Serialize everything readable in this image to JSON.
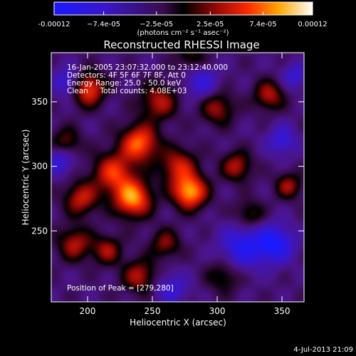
{
  "chart_data": {
    "type": "heatmap",
    "title": "Reconstructed RHESSI Image",
    "xlabel": "Heliocentric X (arcsec)",
    "ylabel": "Heliocentric Y (arcsec)",
    "xlim": [
      172,
      367
    ],
    "ylim": [
      195,
      388
    ],
    "x_ticks": [
      200,
      250,
      300,
      350
    ],
    "y_ticks": [
      250,
      300,
      350
    ],
    "colorbar": {
      "min": -0.00012,
      "max": 0.00012,
      "tick_values": [
        -0.00012,
        -7.4e-05,
        -2.5e-05,
        2.5e-05,
        7.4e-05,
        0.00012
      ],
      "tick_labels": [
        "-0.00012",
        "−7.4e-05",
        "−2.5e-05",
        "2.5e-05",
        "7.4e-05",
        "0.00012"
      ],
      "unit_label": "(photons cm⁻² s⁻¹ asec⁻²)"
    },
    "annotations": [
      "16-Jan-2005 23:07:32.000 to 23:12:40.000",
      "Detectors: 4F 5F 6F 7F 8F, Att 0",
      "Energy Range: 25.0 - 50.0 keV",
      "Clean     Total counts: 4.08E+03"
    ],
    "peak_label": "Position of Peak = [279,280]",
    "peak": [
      279,
      280
    ],
    "footer_timestamp": "4-Jul-2013 21:09",
    "sources": [
      {
        "x": 279,
        "y": 280,
        "amp": 1.0,
        "sigma": 9
      },
      {
        "x": 235,
        "y": 275,
        "amp": 0.95,
        "sigma": 10
      },
      {
        "x": 220,
        "y": 295,
        "amp": 0.7,
        "sigma": 11
      },
      {
        "x": 240,
        "y": 318,
        "amp": 0.85,
        "sigma": 10
      },
      {
        "x": 200,
        "y": 360,
        "amp": 0.8,
        "sigma": 9
      },
      {
        "x": 255,
        "y": 350,
        "amp": 0.55,
        "sigma": 10
      },
      {
        "x": 300,
        "y": 345,
        "amp": 0.5,
        "sigma": 9
      },
      {
        "x": 270,
        "y": 300,
        "amp": 0.6,
        "sigma": 10
      },
      {
        "x": 315,
        "y": 300,
        "amp": 0.55,
        "sigma": 8
      },
      {
        "x": 195,
        "y": 275,
        "amp": 0.6,
        "sigma": 9
      },
      {
        "x": 190,
        "y": 240,
        "amp": 0.55,
        "sigma": 9
      },
      {
        "x": 215,
        "y": 235,
        "amp": 0.5,
        "sigma": 8
      },
      {
        "x": 240,
        "y": 215,
        "amp": 0.55,
        "sigma": 9
      },
      {
        "x": 260,
        "y": 240,
        "amp": 0.45,
        "sigma": 8
      },
      {
        "x": 340,
        "y": 355,
        "amp": 0.55,
        "sigma": 8
      },
      {
        "x": 355,
        "y": 285,
        "amp": 0.5,
        "sigma": 7
      },
      {
        "x": 325,
        "y": 262,
        "amp": 0.4,
        "sigma": 8
      },
      {
        "x": 305,
        "y": 215,
        "amp": 0.35,
        "sigma": 9
      },
      {
        "x": 280,
        "y": 385,
        "amp": 0.35,
        "sigma": 8
      },
      {
        "x": 183,
        "y": 318,
        "amp": 0.45,
        "sigma": 8
      },
      {
        "x": 320,
        "y": 238,
        "amp": -0.6,
        "sigma": 12
      },
      {
        "x": 345,
        "y": 240,
        "amp": -0.7,
        "sigma": 10
      },
      {
        "x": 185,
        "y": 365,
        "amp": -0.5,
        "sigma": 8
      },
      {
        "x": 178,
        "y": 305,
        "amp": -0.5,
        "sigma": 8
      },
      {
        "x": 288,
        "y": 365,
        "amp": -0.45,
        "sigma": 9
      },
      {
        "x": 350,
        "y": 320,
        "amp": -0.45,
        "sigma": 8
      },
      {
        "x": 360,
        "y": 370,
        "amp": -0.4,
        "sigma": 7
      },
      {
        "x": 265,
        "y": 205,
        "amp": -0.4,
        "sigma": 9
      }
    ],
    "background_level": -0.25
  }
}
